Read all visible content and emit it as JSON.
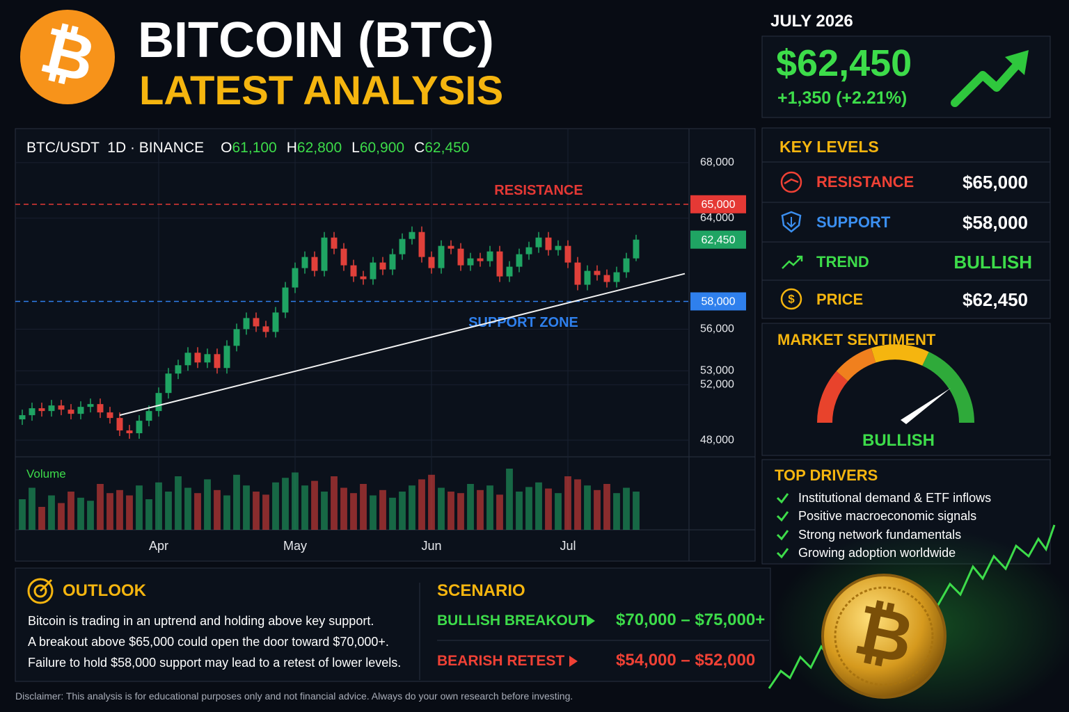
{
  "header": {
    "logo": "₿",
    "title": "BITCOIN (BTC)",
    "subtitle": "LATEST ANALYSIS"
  },
  "price_panel": {
    "date": "JULY 2026",
    "price": "$62,450",
    "change": "+1,350 (+2.21%)"
  },
  "chart_data": {
    "type": "candlestick",
    "symbol": "BTC/USDT  1D · BINANCE",
    "ohlc": [
      {
        "key": "O",
        "value": "61,100"
      },
      {
        "key": "H",
        "value": "62,800"
      },
      {
        "key": "L",
        "value": "60,900"
      },
      {
        "key": "C",
        "value": "62,450"
      }
    ],
    "categories": [
      null,
      null,
      null,
      null,
      null,
      null,
      null,
      null,
      null,
      null,
      null,
      null,
      null,
      null,
      "Apr",
      null,
      null,
      null,
      null,
      null,
      null,
      null,
      null,
      null,
      null,
      null,
      null,
      null,
      "May",
      null,
      null,
      null,
      null,
      null,
      null,
      null,
      null,
      null,
      null,
      null,
      null,
      null,
      "Jun",
      null,
      null,
      null,
      null,
      null,
      null,
      null,
      null,
      null,
      null,
      null,
      null,
      null,
      "Jul",
      null,
      null,
      null,
      null,
      null,
      null,
      null
    ],
    "open": [
      49500,
      49800,
      50300,
      50100,
      50500,
      50200,
      49900,
      50400,
      50600,
      50000,
      49600,
      48700,
      48500,
      49400,
      50100,
      51400,
      52800,
      53400,
      54300,
      53600,
      54200,
      53200,
      54800,
      56000,
      56800,
      56200,
      55800,
      57200,
      59000,
      60400,
      61200,
      60200,
      62600,
      61800,
      60600,
      59800,
      59600,
      60800,
      60300,
      61400,
      62500,
      63000,
      61200,
      60400,
      62000,
      61800,
      60600,
      61100,
      60900,
      61600,
      59800,
      60500,
      61400,
      61900,
      62600,
      61700,
      62000,
      60800,
      59200,
      60200,
      59900,
      59400,
      60100,
      61100
    ],
    "high": [
      50200,
      50700,
      50700,
      50900,
      50900,
      50600,
      50800,
      51000,
      51000,
      50400,
      50000,
      49100,
      49800,
      50500,
      51800,
      53200,
      53800,
      54700,
      54700,
      54600,
      54600,
      55200,
      56400,
      57200,
      57200,
      56600,
      57600,
      59400,
      60800,
      61600,
      61600,
      63000,
      63000,
      62200,
      61000,
      60200,
      61200,
      61200,
      61800,
      62900,
      63400,
      63400,
      61600,
      62400,
      62400,
      62200,
      61500,
      61500,
      62000,
      62000,
      60900,
      61800,
      62300,
      63000,
      63000,
      62400,
      62400,
      61200,
      60600,
      60600,
      60300,
      60500,
      61500,
      62800
    ],
    "low": [
      49100,
      49400,
      49700,
      49700,
      49800,
      49500,
      49500,
      50000,
      49600,
      49200,
      48300,
      48100,
      48100,
      49000,
      49700,
      51000,
      52400,
      53000,
      53200,
      53200,
      52800,
      52800,
      54400,
      55600,
      55800,
      55400,
      55400,
      56800,
      58600,
      60000,
      59800,
      59800,
      61400,
      60200,
      59400,
      59200,
      59200,
      59900,
      59900,
      61000,
      62100,
      60800,
      60000,
      60000,
      61400,
      60200,
      60200,
      60500,
      60500,
      59400,
      59400,
      60100,
      61000,
      61500,
      61300,
      61300,
      60400,
      58800,
      58800,
      59500,
      59000,
      59000,
      59700,
      60900
    ],
    "close": [
      49800,
      50300,
      50100,
      50500,
      50200,
      49900,
      50400,
      50600,
      50000,
      49600,
      48700,
      48500,
      49400,
      50100,
      51400,
      52800,
      53400,
      54300,
      53600,
      54200,
      53200,
      54800,
      56000,
      56800,
      56200,
      55800,
      57200,
      59000,
      60400,
      61200,
      60200,
      62600,
      61800,
      60600,
      59800,
      59600,
      60800,
      60300,
      61400,
      62500,
      63000,
      61200,
      60400,
      62000,
      61800,
      60600,
      61100,
      60900,
      61600,
      59800,
      60500,
      61400,
      61900,
      62600,
      61700,
      62000,
      60800,
      59200,
      60200,
      59900,
      59400,
      60100,
      61100,
      62450
    ],
    "volume_label": "Volume",
    "volume": [
      40,
      55,
      30,
      45,
      35,
      50,
      42,
      38,
      60,
      48,
      52,
      45,
      58,
      40,
      62,
      50,
      70,
      55,
      48,
      66,
      52,
      45,
      72,
      58,
      50,
      46,
      62,
      68,
      75,
      58,
      64,
      50,
      70,
      55,
      48,
      60,
      45,
      52,
      42,
      50,
      58,
      66,
      72,
      55,
      50,
      48,
      60,
      52,
      58,
      46,
      80,
      50,
      56,
      62,
      54,
      48,
      70,
      66,
      58,
      52,
      60,
      48,
      55,
      50
    ],
    "up_color": "#1fa463",
    "down_color": "#e0403a",
    "ylim": [
      46900,
      70450
    ],
    "yticks": [
      {
        "value": 48000,
        "label": "48,000"
      },
      {
        "value": 52000,
        "label": "52,000"
      },
      {
        "value": 53000,
        "label": "53,000"
      },
      {
        "value": 56000,
        "label": "56,000"
      },
      {
        "value": 64000,
        "label": "64,000"
      },
      {
        "value": 68000,
        "label": "68,000"
      }
    ],
    "grid": true,
    "price_markers": [
      {
        "value": 65000,
        "label": "65,000",
        "color": "#e53935",
        "line": true,
        "note": "RESISTANCE"
      },
      {
        "value": 62450,
        "label": "62,450",
        "color": "#1fa463",
        "line": false
      },
      {
        "value": 58000,
        "label": "58,000",
        "color": "#2f80ed",
        "line": true,
        "note": "SUPPORT ZONE"
      }
    ],
    "trendline": {
      "x": [
        10,
        68
      ],
      "values": [
        49800,
        60000
      ],
      "color": "#f2f2f2"
    }
  },
  "key_levels": {
    "title": "KEY LEVELS",
    "rows": [
      {
        "label": "RESISTANCE",
        "value": "$65,000"
      },
      {
        "label": "SUPPORT",
        "value": "$58,000"
      },
      {
        "label": "TREND",
        "value": "BULLISH"
      },
      {
        "label": "PRICE",
        "value": "$62,450"
      }
    ]
  },
  "sentiment": {
    "title": "MARKET SENTIMENT",
    "label": "BULLISH"
  },
  "drivers": {
    "title": "TOP DRIVERS",
    "items": [
      "Institutional demand & ETF inflows",
      "Positive macroeconomic signals",
      "Strong network fundamentals",
      "Growing adoption worldwide"
    ]
  },
  "outlook": {
    "title": "OUTLOOK",
    "lines": [
      "Bitcoin is trading in an uptrend and holding above key support.",
      "A breakout above $65,000 could open the door toward $70,000+.",
      "Failure to hold $58,000 support may lead to a retest of lower levels."
    ]
  },
  "scenario": {
    "title": "SCENARIO",
    "rows": [
      {
        "label": "BULLISH BREAKOUT",
        "range": "$70,000 – $75,000+"
      },
      {
        "label": "BEARISH RETEST",
        "range": "$54,000 – $52,000"
      }
    ]
  },
  "disclaimer": "Disclaimer: This analysis is for educational purposes only and not financial advice. Always do your own research before investing."
}
